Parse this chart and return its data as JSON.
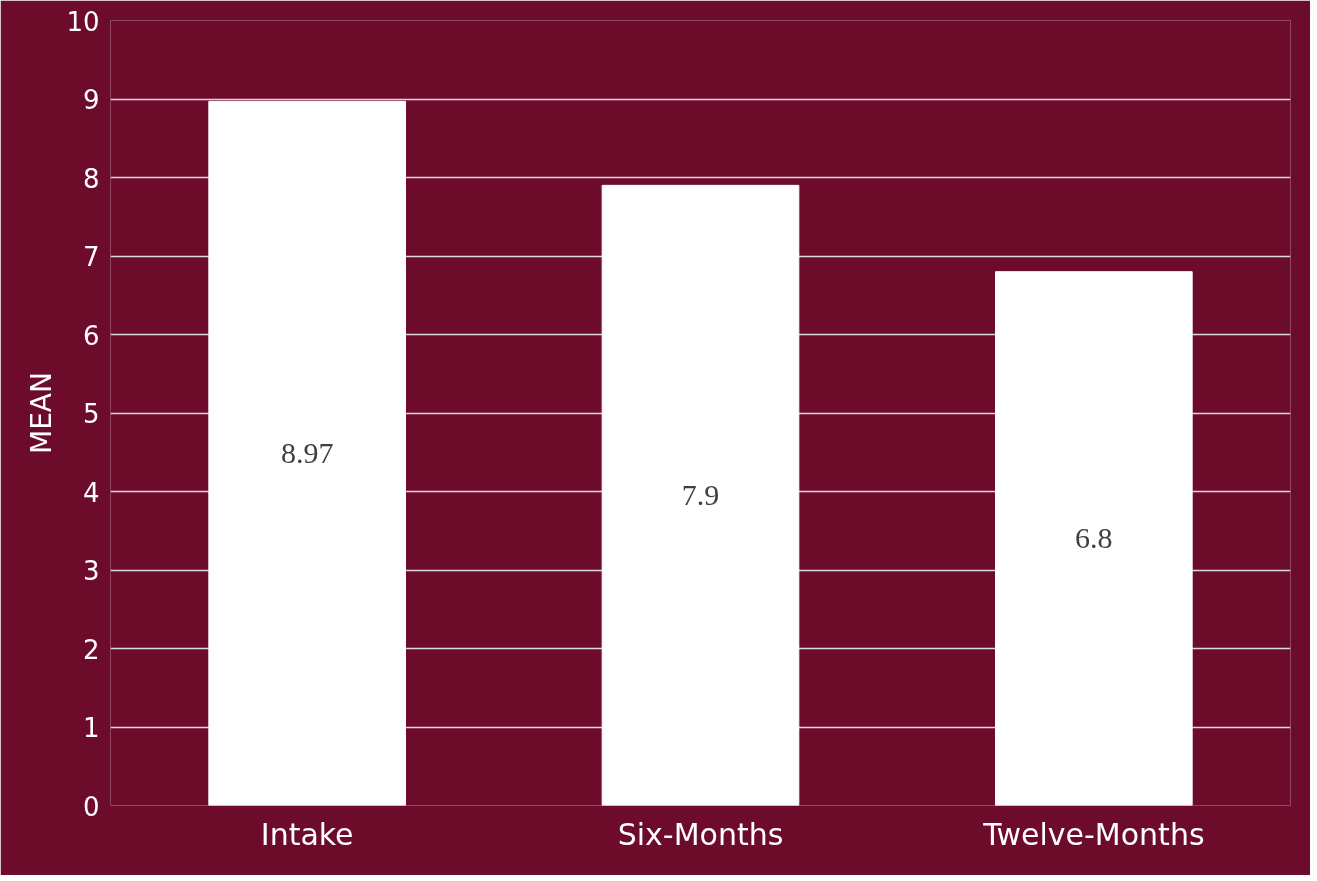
{
  "chart_data": {
    "type": "bar",
    "ylabel": "MEAN",
    "categories": [
      "Intake",
      "Six-Months",
      "Twelve-Months"
    ],
    "values": [
      8.97,
      7.9,
      6.8
    ],
    "color": "#ffffff",
    "ylim": [
      0,
      10
    ],
    "yticks": [
      0,
      1,
      2,
      3,
      4,
      5,
      6,
      7,
      8,
      9,
      10
    ],
    "grid": "y",
    "data_labels": true
  }
}
